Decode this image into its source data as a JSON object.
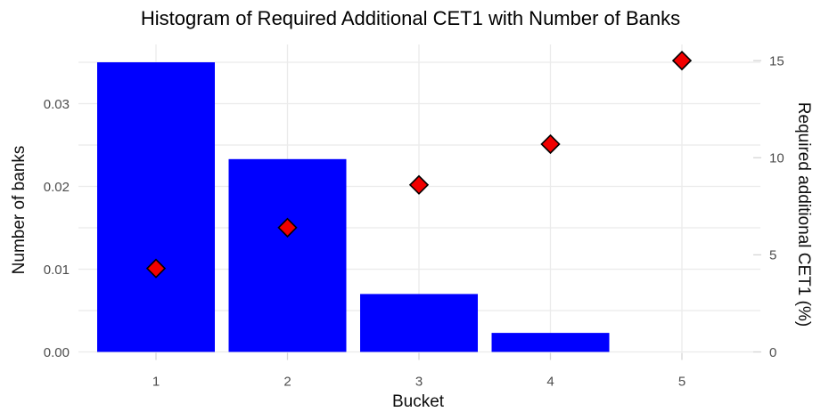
{
  "chart_data": {
    "type": "combo",
    "title": "Histogram of Required Additional CET1 with Number of Banks",
    "x_label": "Bucket",
    "y_left_label": "Number of banks",
    "y_right_label": "Required additional CET1 (%)",
    "categories": [
      "1",
      "2",
      "3",
      "4",
      "5"
    ],
    "series": [
      {
        "name": "Number of banks",
        "type": "bar",
        "axis": "left",
        "values": [
          0.035,
          0.0233,
          0.007,
          0.0023,
          0
        ]
      },
      {
        "name": "Required additional CET1 (%)",
        "type": "scatter",
        "marker": "diamond",
        "axis": "right",
        "values": [
          4.3,
          6.4,
          8.6,
          10.7,
          15.0
        ]
      }
    ],
    "x_ticks": [
      "1",
      "2",
      "3",
      "4",
      "5"
    ],
    "y_left_ticks": [
      "0.00",
      "0.01",
      "0.02",
      "0.03"
    ],
    "y_left_range": [
      0,
      0.035
    ],
    "y_right_ticks": [
      "0",
      "5",
      "10",
      "15"
    ],
    "y_right_range": [
      0,
      15
    ],
    "grid": true,
    "legend_position": "none",
    "colors": {
      "bar": "#0000FF",
      "point": "#F10000",
      "point_border": "#000000",
      "grid": "#EBEBEB",
      "tick_mark": "#D6D6D6",
      "tick_text": "#4D4D4D",
      "title_text": "#000000",
      "background": "#FFFFFF"
    }
  }
}
